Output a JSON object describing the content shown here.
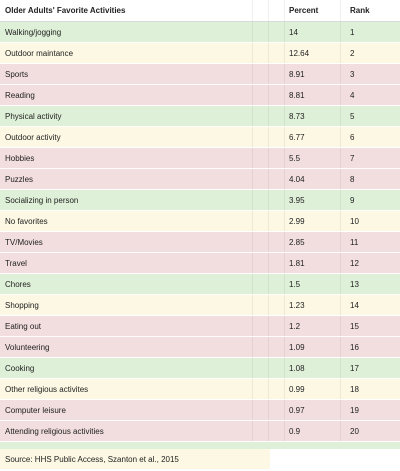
{
  "table": {
    "headers": {
      "title": "Older Adults' Favorite Activities",
      "percent": "Percent",
      "rank": "Rank"
    },
    "rows": [
      {
        "activity": "Walking/jogging",
        "percent": "14",
        "rank": "1",
        "color": "#dff0d8"
      },
      {
        "activity": "Outdoor maintance",
        "percent": "12.64",
        "rank": "2",
        "color": "#fcf8e3"
      },
      {
        "activity": "Sports",
        "percent": "8.91",
        "rank": "3",
        "color": "#f2dede"
      },
      {
        "activity": "Reading",
        "percent": "8.81",
        "rank": "4",
        "color": "#f2dede"
      },
      {
        "activity": "Physical activity",
        "percent": "8.73",
        "rank": "5",
        "color": "#dff0d8"
      },
      {
        "activity": "Outdoor activity",
        "percent": "6.77",
        "rank": "6",
        "color": "#fcf8e3"
      },
      {
        "activity": "Hobbies",
        "percent": "5.5",
        "rank": "7",
        "color": "#f2dede"
      },
      {
        "activity": "Puzzles",
        "percent": "4.04",
        "rank": "8",
        "color": "#f2dede"
      },
      {
        "activity": "Socializing in person",
        "percent": "3.95",
        "rank": "9",
        "color": "#dff0d8"
      },
      {
        "activity": "No favorites",
        "percent": "2.99",
        "rank": "10",
        "color": "#fcf8e3"
      },
      {
        "activity": "TV/Movies",
        "percent": "2.85",
        "rank": "11",
        "color": "#f2dede"
      },
      {
        "activity": "Travel",
        "percent": "1.81",
        "rank": "12",
        "color": "#f2dede"
      },
      {
        "activity": "Chores",
        "percent": "1.5",
        "rank": "13",
        "color": "#dff0d8"
      },
      {
        "activity": "Shopping",
        "percent": "1.23",
        "rank": "14",
        "color": "#fcf8e3"
      },
      {
        "activity": "Eating out",
        "percent": "1.2",
        "rank": "15",
        "color": "#f2dede"
      },
      {
        "activity": "Volunteering",
        "percent": "1.09",
        "rank": "16",
        "color": "#f2dede"
      },
      {
        "activity": "Cooking",
        "percent": "1.08",
        "rank": "17",
        "color": "#dff0d8"
      },
      {
        "activity": "Other religious activites",
        "percent": "0.99",
        "rank": "18",
        "color": "#fcf8e3"
      },
      {
        "activity": "Computer leisure",
        "percent": "0.97",
        "rank": "19",
        "color": "#f2dede"
      },
      {
        "activity": "Attending religious activities",
        "percent": "0.9",
        "rank": "20",
        "color": "#f2dede"
      }
    ]
  },
  "source": "Source: HHS Public Access, Szanton et al., 2015"
}
